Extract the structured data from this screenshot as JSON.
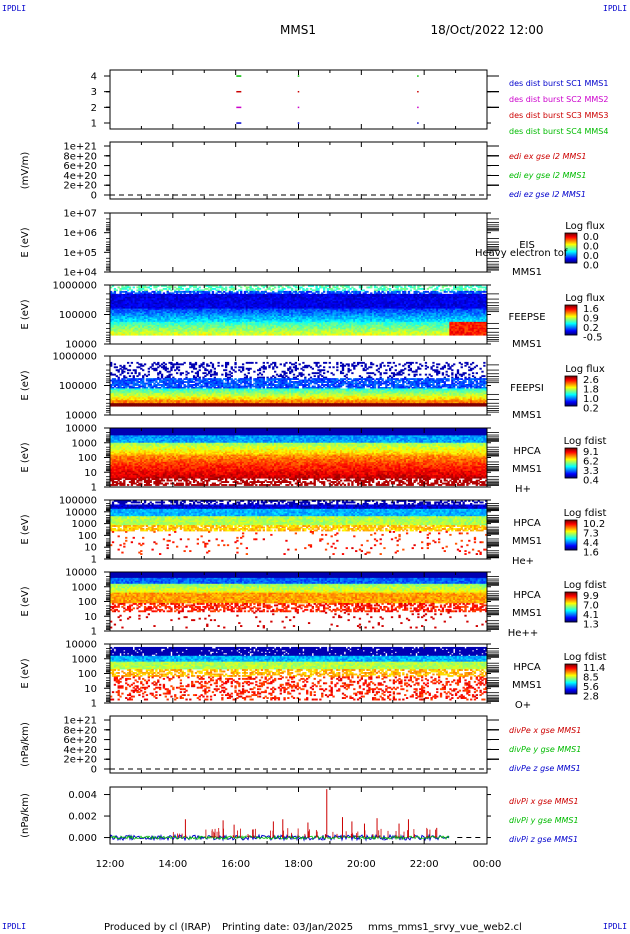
{
  "header": {
    "corner_label": "IPDLI",
    "spacecraft": "MMS1",
    "datetime": "18/Oct/2022 12:00"
  },
  "footer": {
    "produced_by": "Produced by cl (IRAP)",
    "printing_date": "Printing date: 03/Jan/2025",
    "filename": "mms_mms1_srvy_vue_web2.cl"
  },
  "time_axis": [
    "12:00",
    "14:00",
    "16:00",
    "18:00",
    "20:00",
    "22:00",
    "00:00"
  ],
  "colors": {
    "sc1": "#0000cc",
    "sc2": "#cc00cc",
    "sc3": "#cc0000",
    "sc4": "#00bb00",
    "x": "#cc0000",
    "y": "#00bb00",
    "z": "#0000cc"
  },
  "chart_data": [
    {
      "id": "burst",
      "type": "scatter",
      "yticks": [
        "4",
        "3",
        "2",
        "1"
      ],
      "legend": [
        "des dist burst SC1 MMS1",
        "des dist burst SC2 MMS2",
        "des dist burst SC3 MMS3",
        "des dist burst SC4 MMS4"
      ],
      "legend_colors": [
        "sc1",
        "sc2",
        "sc3",
        "sc4"
      ],
      "events": [
        {
          "level": 4,
          "x": [
            16.1,
            18.0,
            21.8
          ]
        },
        {
          "level": 3,
          "x": [
            16.1,
            18.0,
            21.8
          ]
        },
        {
          "level": 2,
          "x": [
            16.1,
            18.0,
            21.8
          ]
        },
        {
          "level": 1,
          "x": [
            16.1,
            18.0,
            21.8
          ]
        }
      ]
    },
    {
      "id": "edi",
      "type": "line",
      "ylabel": "(mV/m)",
      "yticks": [
        "1e+21",
        "8e+20",
        "6e+20",
        "4e+20",
        "2e+20",
        "0"
      ],
      "legend": [
        "edi ex gse l2 MMS1",
        "edi ey gse l2 MMS1",
        "edi ez gse l2 MMS1"
      ],
      "legend_colors": [
        "x",
        "y",
        "z"
      ]
    },
    {
      "id": "eis",
      "type": "heatmap",
      "ylabel": "E (eV)",
      "yticks": [
        "1e+07",
        "1e+06",
        "1e+05",
        "1e+04"
      ],
      "instrument": "EIS",
      "spacecraft_label": "MMS1",
      "overlay_text": "Heavy electron tof",
      "cbar_title": "Log flux",
      "cbar_ticks": [
        "0.0",
        "0.0",
        "0.0",
        "0.0"
      ],
      "empty": true
    },
    {
      "id": "feepse",
      "type": "heatmap",
      "ylabel": "E (eV)",
      "yticks": [
        "1000000",
        "100000",
        "10000"
      ],
      "instrument": "FEEPSE",
      "spacecraft_label": "MMS1",
      "cbar_title": "Log flux",
      "cbar_ticks": [
        "1.6",
        "0.9",
        "0.2",
        "-0.5"
      ],
      "profile": "feeps_e"
    },
    {
      "id": "feepsi",
      "type": "heatmap",
      "ylabel": "E (eV)",
      "yticks": [
        "1000000",
        "100000",
        "10000"
      ],
      "instrument": "FEEPSI",
      "spacecraft_label": "MMS1",
      "cbar_title": "Log flux",
      "cbar_ticks": [
        "2.6",
        "1.8",
        "1.0",
        "0.2"
      ],
      "profile": "feeps_i"
    },
    {
      "id": "hpca_h",
      "type": "heatmap",
      "ylabel": "E (eV)",
      "yticks": [
        "10000",
        "1000",
        "100",
        "10",
        "1"
      ],
      "instrument": "HPCA",
      "spacecraft_label": "MMS1",
      "species": "H+",
      "cbar_title": "Log fdist",
      "cbar_ticks": [
        "9.1",
        "6.2",
        "3.3",
        "0.4"
      ],
      "profile": "hpca_h"
    },
    {
      "id": "hpca_he",
      "type": "heatmap",
      "ylabel": "E (eV)",
      "yticks": [
        "100000",
        "10000",
        "1000",
        "100",
        "10",
        "1"
      ],
      "instrument": "HPCA",
      "spacecraft_label": "MMS1",
      "species": "He+",
      "cbar_title": "Log fdist",
      "cbar_ticks": [
        "10.2",
        "7.3",
        "4.4",
        "1.6"
      ],
      "profile": "hpca_he"
    },
    {
      "id": "hpca_hepp",
      "type": "heatmap",
      "ylabel": "E (eV)",
      "yticks": [
        "10000",
        "1000",
        "100",
        "10",
        "1"
      ],
      "instrument": "HPCA",
      "spacecraft_label": "MMS1",
      "species": "He++",
      "cbar_title": "Log fdist",
      "cbar_ticks": [
        "9.9",
        "7.0",
        "4.1",
        "1.3"
      ],
      "profile": "hpca_hepp"
    },
    {
      "id": "hpca_o",
      "type": "heatmap",
      "ylabel": "E (eV)",
      "yticks": [
        "10000",
        "1000",
        "100",
        "10",
        "1"
      ],
      "instrument": "HPCA",
      "spacecraft_label": "MMS1",
      "species": "O+",
      "cbar_title": "Log fdist",
      "cbar_ticks": [
        "11.4",
        "8.5",
        "5.6",
        "2.8"
      ],
      "profile": "hpca_o"
    },
    {
      "id": "divpe",
      "type": "line",
      "ylabel": "(nPa/km)",
      "yticks": [
        "1e+21",
        "8e+20",
        "6e+20",
        "4e+20",
        "2e+20",
        "0"
      ],
      "legend": [
        "divPe x gse MMS1",
        "divPe y gse MMS1",
        "divPe z gse MMS1"
      ],
      "legend_colors": [
        "x",
        "y",
        "z"
      ]
    },
    {
      "id": "divpi",
      "type": "line",
      "ylabel": "(nPa/km)",
      "yticks": [
        "0.004",
        "0.002",
        "0.000"
      ],
      "ylim": [
        -0.0006,
        0.0047
      ],
      "legend": [
        "divPi x gse MMS1",
        "divPi y gse MMS1",
        "divPi z gse MMS1"
      ],
      "legend_colors": [
        "x",
        "y",
        "z"
      ],
      "data_end_hour": 22.8,
      "spikes": [
        {
          "t": 14.4,
          "v": 0.0017
        },
        {
          "t": 15.6,
          "v": 0.0016
        },
        {
          "t": 15.95,
          "v": 0.0012
        },
        {
          "t": 17.2,
          "v": 0.0015
        },
        {
          "t": 17.5,
          "v": 0.0017
        },
        {
          "t": 18.3,
          "v": 0.0014
        },
        {
          "t": 18.9,
          "v": 0.0045
        },
        {
          "t": 19.4,
          "v": 0.0019
        },
        {
          "t": 19.7,
          "v": 0.0015
        },
        {
          "t": 20.1,
          "v": 0.0013
        },
        {
          "t": 20.5,
          "v": 0.0018
        },
        {
          "t": 21.2,
          "v": 0.0013
        },
        {
          "t": 21.5,
          "v": 0.0017
        },
        {
          "t": 22.4,
          "v": 0.0009
        }
      ]
    }
  ]
}
